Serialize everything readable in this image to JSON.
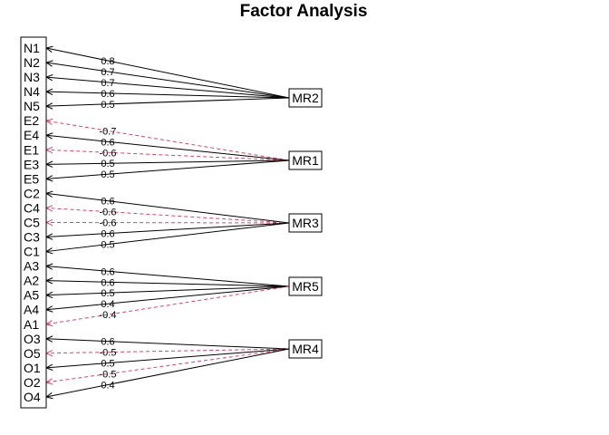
{
  "title": "Factor Analysis",
  "colors": {
    "positive": "#000000",
    "negative": "#d6456a"
  },
  "variables": [
    "N1",
    "N2",
    "N3",
    "N4",
    "N5",
    "E2",
    "E4",
    "E1",
    "E3",
    "E5",
    "C2",
    "C4",
    "C5",
    "C3",
    "C1",
    "A3",
    "A2",
    "A5",
    "A4",
    "A1",
    "O3",
    "O5",
    "O1",
    "O2",
    "O4"
  ],
  "factors": [
    {
      "name": "MR2",
      "loadings": [
        {
          "var": "N1",
          "value": "0.8"
        },
        {
          "var": "N2",
          "value": "0.7"
        },
        {
          "var": "N3",
          "value": "0.7"
        },
        {
          "var": "N4",
          "value": "0.6"
        },
        {
          "var": "N5",
          "value": "0.5"
        }
      ]
    },
    {
      "name": "MR1",
      "loadings": [
        {
          "var": "E2",
          "value": "-0.7"
        },
        {
          "var": "E4",
          "value": "0.6"
        },
        {
          "var": "E1",
          "value": "-0.6"
        },
        {
          "var": "E3",
          "value": "0.5"
        },
        {
          "var": "E5",
          "value": "0.5"
        }
      ]
    },
    {
      "name": "MR3",
      "loadings": [
        {
          "var": "C2",
          "value": "0.6"
        },
        {
          "var": "C4",
          "value": "-0.6"
        },
        {
          "var": "C5",
          "value": "-0.6"
        },
        {
          "var": "C3",
          "value": "0.6"
        },
        {
          "var": "C1",
          "value": "0.5"
        }
      ]
    },
    {
      "name": "MR5",
      "loadings": [
        {
          "var": "A3",
          "value": "0.6"
        },
        {
          "var": "A2",
          "value": "0.6"
        },
        {
          "var": "A5",
          "value": "0.5"
        },
        {
          "var": "A4",
          "value": "0.4"
        },
        {
          "var": "A1",
          "value": "-0.4"
        }
      ]
    },
    {
      "name": "MR4",
      "loadings": [
        {
          "var": "O3",
          "value": "0.6"
        },
        {
          "var": "O5",
          "value": "-0.5"
        },
        {
          "var": "O1",
          "value": "0.5"
        },
        {
          "var": "O2",
          "value": "-0.5"
        },
        {
          "var": "O4",
          "value": "0.4"
        }
      ]
    }
  ]
}
